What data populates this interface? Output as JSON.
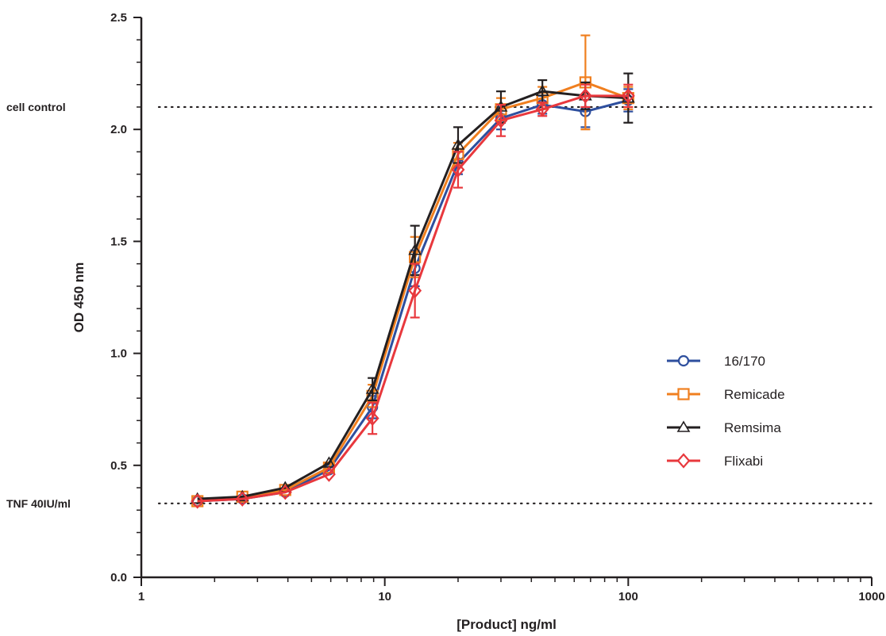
{
  "chart_data": {
    "type": "line",
    "xlabel": "[Product] ng/ml",
    "ylabel": "OD 450 nm",
    "xscale": "log",
    "xlim": [
      1,
      1000
    ],
    "ylim": [
      0,
      2.5
    ],
    "x_ticks": [
      1,
      10,
      100,
      1000
    ],
    "x_tick_labels": [
      "1",
      "10",
      "100",
      "1000"
    ],
    "y_ticks": [
      0,
      0.5,
      1.0,
      1.5,
      2.0,
      2.5
    ],
    "y_tick_labels": [
      "0.0",
      "0.5",
      "1.0",
      "1.5",
      "2.0",
      "2.5"
    ],
    "legend_position": "right",
    "x": [
      1.7,
      2.6,
      3.9,
      5.9,
      8.9,
      13.3,
      20,
      30,
      44.4,
      66.7,
      100
    ],
    "reference_lines": [
      {
        "label": "cell control",
        "y": 2.1
      },
      {
        "label": "TNF 40IU/ml",
        "y": 0.33
      }
    ],
    "series": [
      {
        "name": "16/170",
        "color": "#2e4f9e",
        "marker": "circle",
        "values": [
          0.34,
          0.35,
          0.38,
          0.48,
          0.76,
          1.38,
          1.85,
          2.05,
          2.11,
          2.08,
          2.13
        ],
        "errors": [
          0.02,
          0.02,
          0.02,
          0.02,
          0.05,
          0.08,
          0.05,
          0.05,
          0.04,
          0.07,
          0.05
        ]
      },
      {
        "name": "Remicade",
        "color": "#f07f1f",
        "marker": "square",
        "values": [
          0.34,
          0.36,
          0.39,
          0.49,
          0.81,
          1.43,
          1.89,
          2.09,
          2.14,
          2.21,
          2.14
        ],
        "errors": [
          0.02,
          0.02,
          0.02,
          0.02,
          0.05,
          0.09,
          0.05,
          0.05,
          0.05,
          0.21,
          0.05
        ]
      },
      {
        "name": "Remsima",
        "color": "#231f20",
        "marker": "triangle",
        "values": [
          0.35,
          0.36,
          0.4,
          0.51,
          0.84,
          1.46,
          1.93,
          2.1,
          2.17,
          2.15,
          2.14
        ],
        "errors": [
          0.02,
          0.02,
          0.02,
          0.02,
          0.05,
          0.11,
          0.08,
          0.07,
          0.05,
          0.06,
          0.11
        ]
      },
      {
        "name": "Flixabi",
        "color": "#e8383d",
        "marker": "diamond",
        "values": [
          0.34,
          0.35,
          0.38,
          0.46,
          0.71,
          1.28,
          1.82,
          2.04,
          2.09,
          2.15,
          2.15
        ],
        "errors": [
          0.02,
          0.02,
          0.02,
          0.02,
          0.07,
          0.12,
          0.08,
          0.07,
          0.03,
          0.05,
          0.05
        ]
      }
    ]
  }
}
